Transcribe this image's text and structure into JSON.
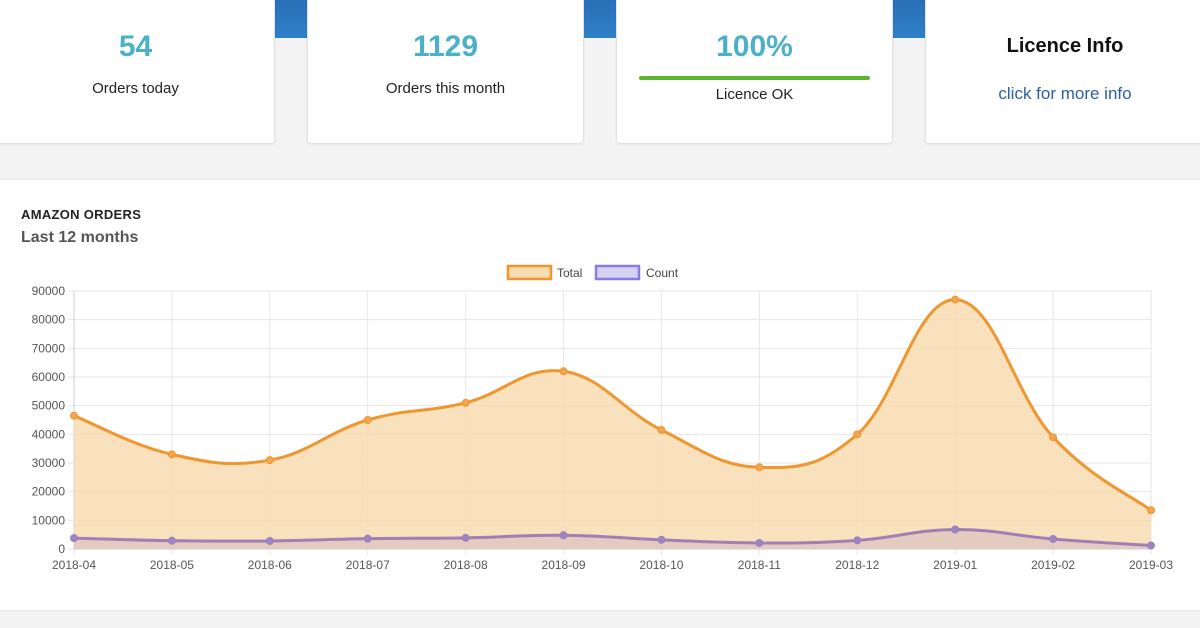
{
  "stats": {
    "orders_today": {
      "value": "54",
      "label": "Orders today"
    },
    "orders_month": {
      "value": "1129",
      "label": "Orders this month"
    },
    "licence": {
      "value": "100%",
      "label": "Licence OK",
      "progress": 1.0
    },
    "licence_info": {
      "title": "Licence Info",
      "link": "click for more info"
    }
  },
  "panel": {
    "title": "AMAZON ORDERS",
    "subtitle": "Last 12 months"
  },
  "colors": {
    "header_blue": "#2f7fc6",
    "stat_number": "#4cb1c8",
    "licence_bar": "#5cb531",
    "link": "#2a5fa2",
    "total_line": "#f0962f",
    "total_fill": "#f8dcb1",
    "count_line": "#a07fb6",
    "count_fill": "#d5bcc0"
  },
  "chart_data": {
    "type": "area",
    "title": "",
    "xlabel": "",
    "ylabel": "",
    "categories": [
      "2018-04",
      "2018-05",
      "2018-06",
      "2018-07",
      "2018-08",
      "2018-09",
      "2018-10",
      "2018-11",
      "2018-12",
      "2019-01",
      "2019-02",
      "2019-03"
    ],
    "series": [
      {
        "name": "Total",
        "values": [
          46500,
          33000,
          31000,
          45000,
          51000,
          62000,
          41500,
          28500,
          40000,
          87000,
          39000,
          13500
        ]
      },
      {
        "name": "Count",
        "values": [
          3800,
          2900,
          2800,
          3600,
          3900,
          4800,
          3200,
          2100,
          3000,
          6800,
          3500,
          1200
        ]
      }
    ],
    "ylim": [
      0,
      90000
    ],
    "yticks": [
      "0",
      "10000",
      "20000",
      "30000",
      "40000",
      "50000",
      "60000",
      "70000",
      "80000",
      "90000"
    ],
    "grid": true,
    "legend": "top-center"
  }
}
